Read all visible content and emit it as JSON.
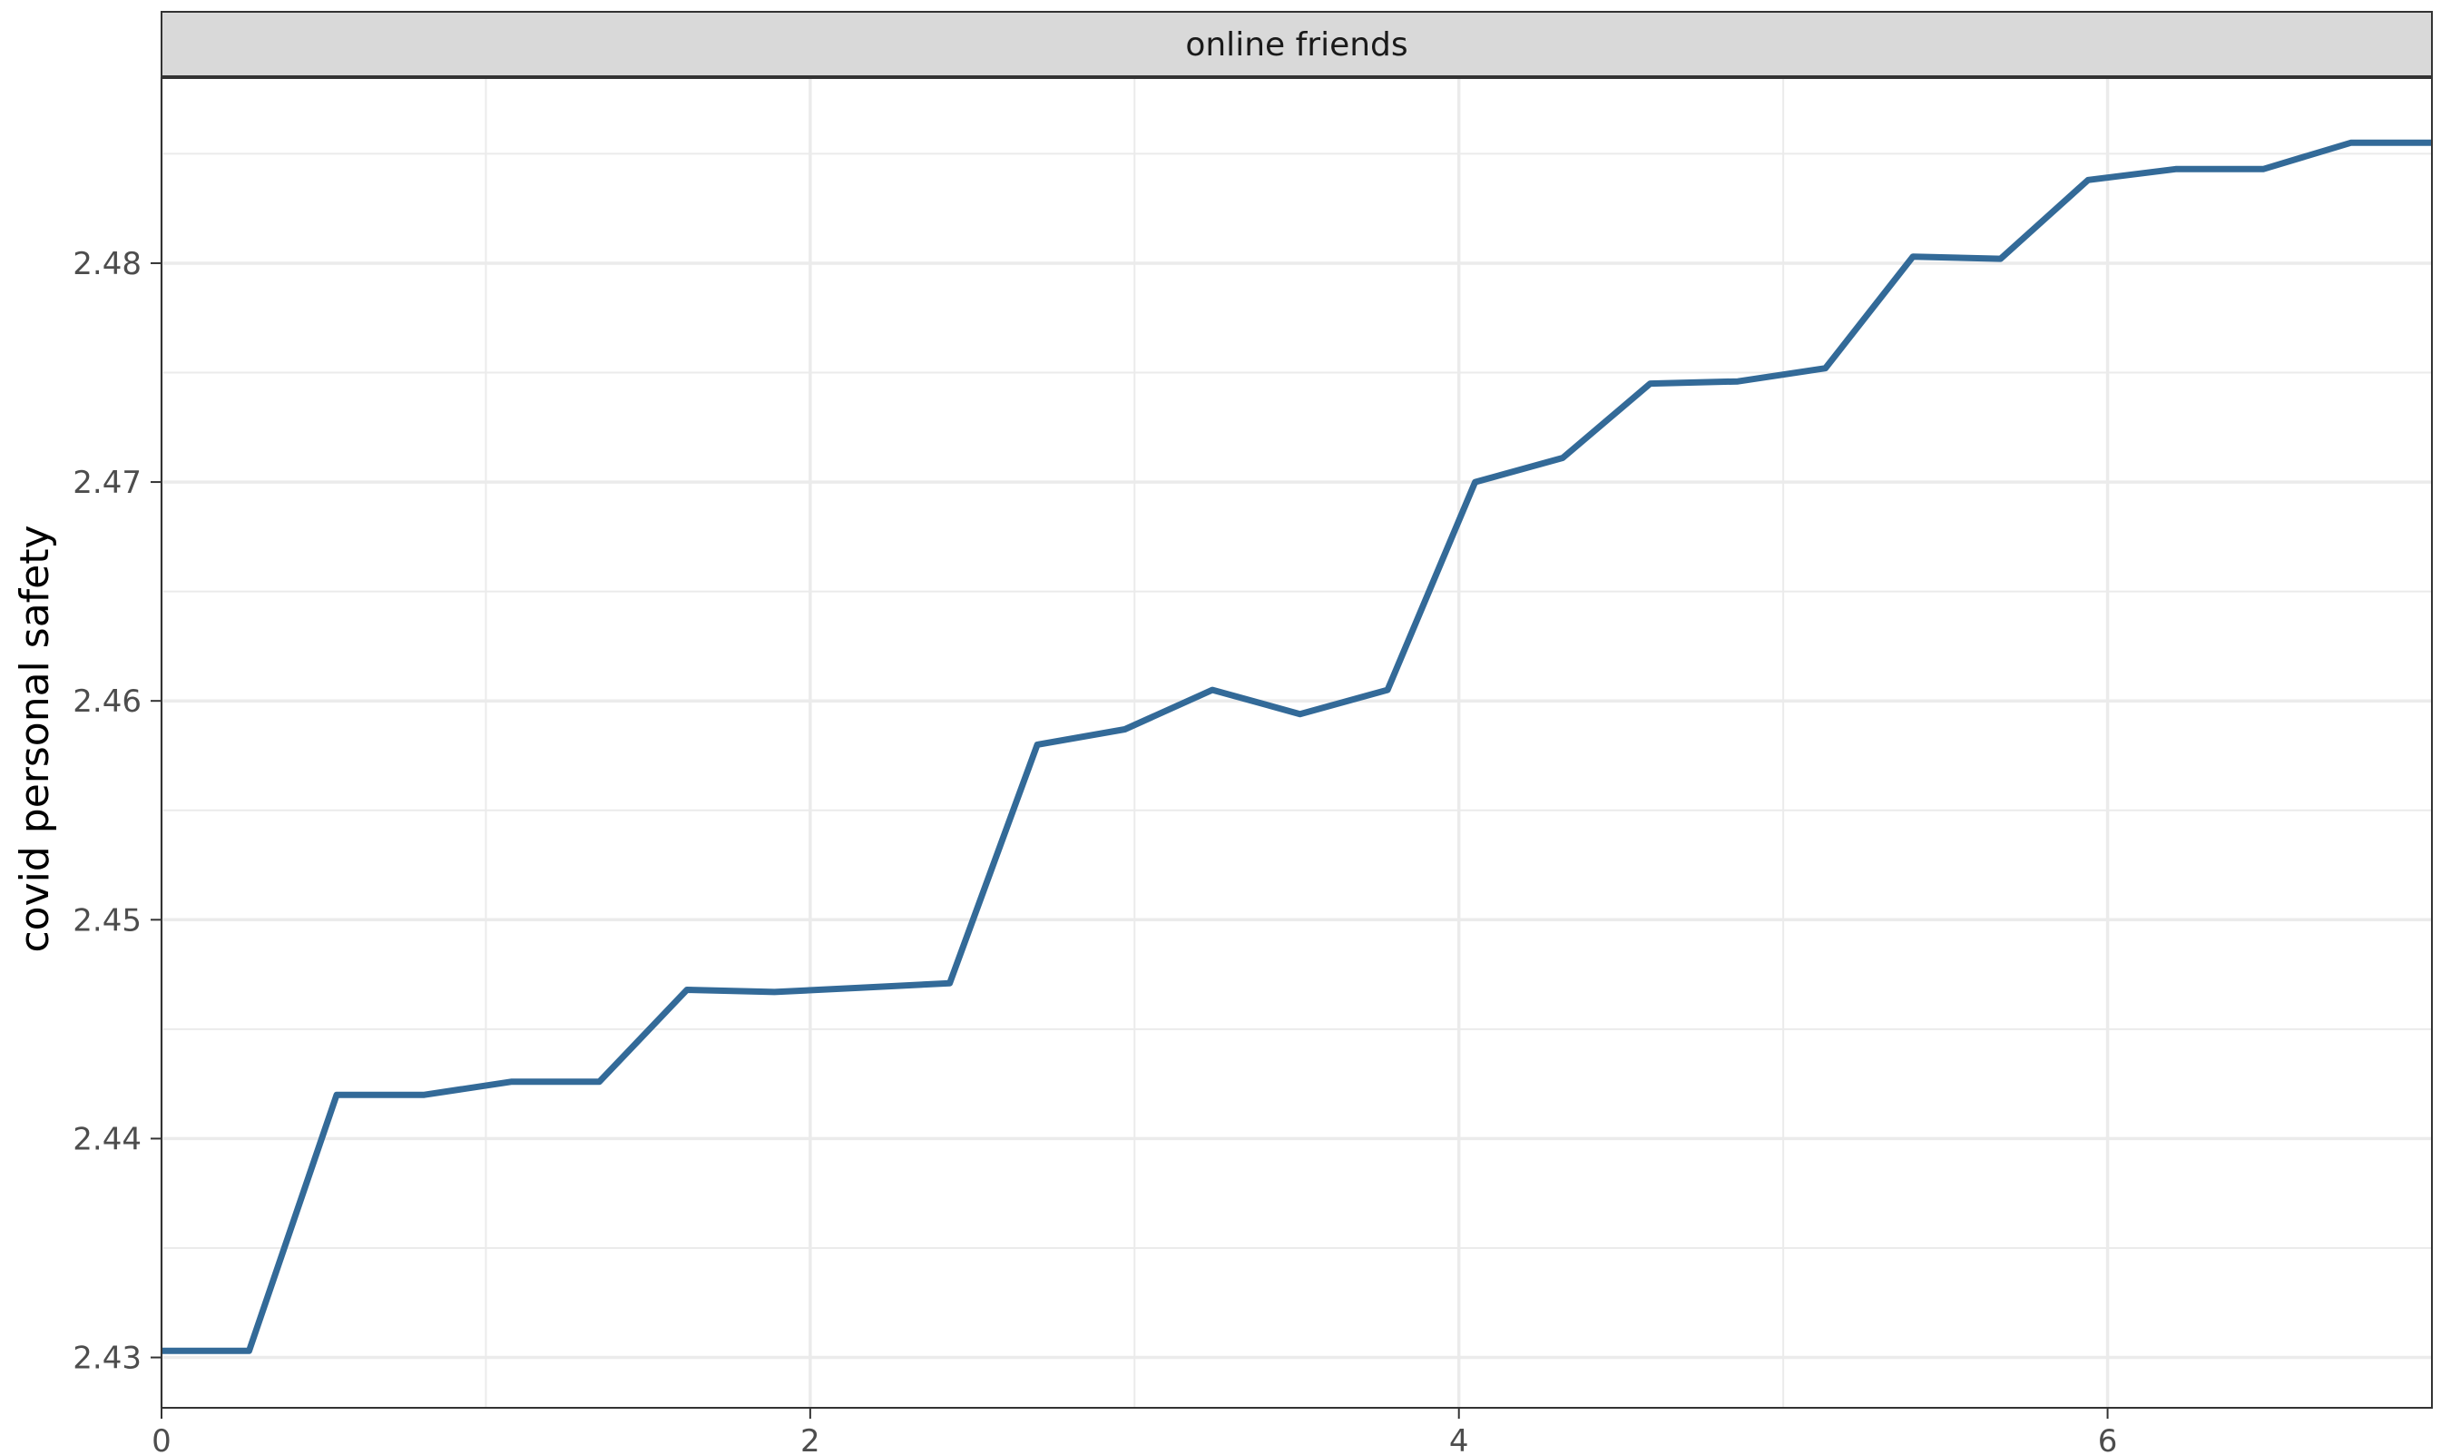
{
  "chart_data": {
    "type": "line",
    "facet_label": "online friends",
    "xlabel": "",
    "ylabel": "covid personal safety",
    "xlim": [
      0,
      7
    ],
    "ylim": [
      2.4277,
      2.4885
    ],
    "x_ticks": [
      0,
      2,
      4,
      6
    ],
    "y_ticks": [
      2.43,
      2.44,
      2.45,
      2.46,
      2.47,
      2.48
    ],
    "grid": true,
    "legend": "none",
    "colors": {
      "line": "#336a98",
      "strip_bg": "#d9d9d9",
      "grid": "#ebebeb"
    },
    "series": [
      {
        "x": [
          0,
          0.27,
          0.54,
          0.81,
          1.08,
          1.35,
          1.62,
          1.89,
          2.16,
          2.43,
          2.7,
          2.97,
          3.24,
          3.51,
          3.78,
          4.05,
          4.32,
          4.59,
          4.86,
          5.13,
          5.4,
          5.67,
          5.94,
          6.21,
          6.48,
          6.75,
          7.0
        ],
        "y": [
          2.4303,
          2.4303,
          2.442,
          2.442,
          2.4426,
          2.4426,
          2.4468,
          2.4467,
          2.4469,
          2.4471,
          2.458,
          2.4587,
          2.4605,
          2.4594,
          2.4605,
          2.47,
          2.4711,
          2.4745,
          2.4746,
          2.4752,
          2.4803,
          2.4802,
          2.4838,
          2.4843,
          2.4843,
          2.4855,
          2.4855
        ]
      }
    ]
  }
}
